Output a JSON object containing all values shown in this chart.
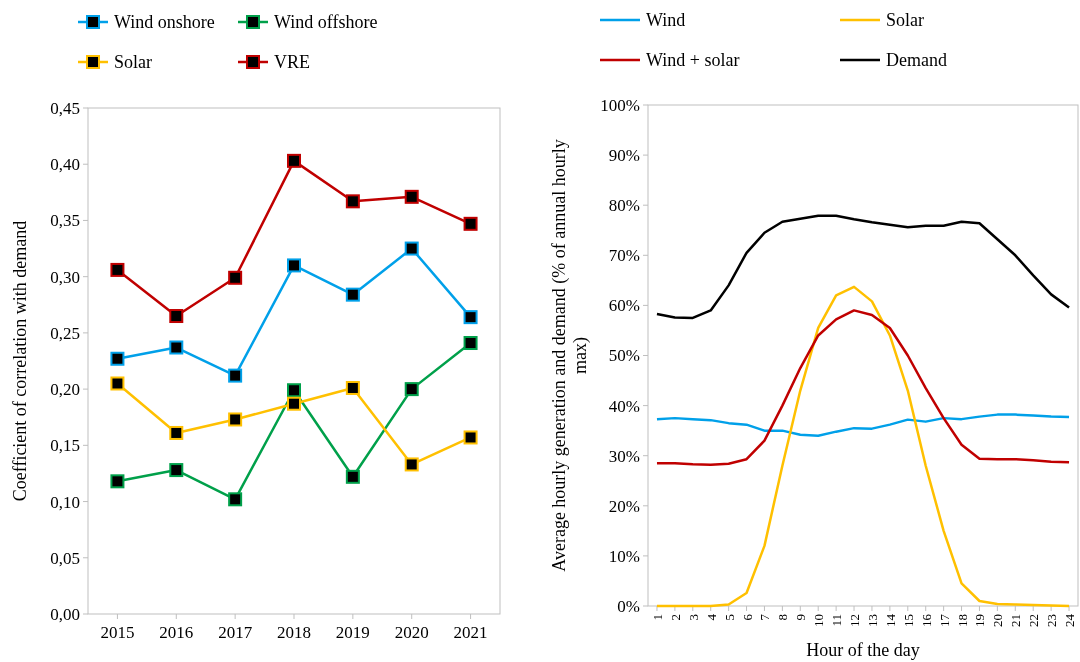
{
  "chart_data": [
    {
      "type": "line",
      "ylabel": "Coefficient of correlation with demand",
      "categories": [
        "2015",
        "2016",
        "2017",
        "2018",
        "2019",
        "2020",
        "2021"
      ],
      "ylim": [
        0,
        0.45
      ],
      "yticks": [
        {
          "value": 0,
          "label": "0,00"
        },
        {
          "value": 0.05,
          "label": "0,05"
        },
        {
          "value": 0.1,
          "label": "0,10"
        },
        {
          "value": 0.15,
          "label": "0,15"
        },
        {
          "value": 0.2,
          "label": "0,20"
        },
        {
          "value": 0.25,
          "label": "0,25"
        },
        {
          "value": 0.3,
          "label": "0,30"
        },
        {
          "value": 0.35,
          "label": "0,35"
        },
        {
          "value": 0.4,
          "label": "0,40"
        },
        {
          "value": 0.45,
          "label": "0,45"
        }
      ],
      "legend": "top",
      "marker": "square",
      "series": [
        {
          "name": "Wind onshore",
          "color": "#00a0e9",
          "values": [
            0.227,
            0.237,
            0.212,
            0.31,
            0.284,
            0.325,
            0.264
          ]
        },
        {
          "name": "Wind offshore",
          "color": "#00a04a",
          "values": [
            0.118,
            0.128,
            0.102,
            0.199,
            0.122,
            0.2,
            0.241
          ]
        },
        {
          "name": "Solar",
          "color": "#ffc000",
          "values": [
            0.205,
            0.161,
            0.173,
            0.187,
            0.201,
            0.133,
            0.157
          ]
        },
        {
          "name": "VRE",
          "color": "#c00000",
          "values": [
            0.306,
            0.265,
            0.299,
            0.403,
            0.367,
            0.371,
            0.347
          ]
        }
      ]
    },
    {
      "type": "line",
      "xlabel": "Hour of the day",
      "ylabel": "Average hourly generation and demand (% of annual hourly max)",
      "categories": [
        "1",
        "2",
        "3",
        "4",
        "5",
        "6",
        "7",
        "8",
        "9",
        "10",
        "11",
        "12",
        "13",
        "14",
        "15",
        "16",
        "17",
        "18",
        "19",
        "20",
        "21",
        "22",
        "23",
        "24"
      ],
      "ylim": [
        0,
        100
      ],
      "yticks": [
        {
          "value": 0,
          "label": "0%"
        },
        {
          "value": 10,
          "label": "10%"
        },
        {
          "value": 20,
          "label": "20%"
        },
        {
          "value": 30,
          "label": "30%"
        },
        {
          "value": 40,
          "label": "40%"
        },
        {
          "value": 50,
          "label": "50%"
        },
        {
          "value": 60,
          "label": "60%"
        },
        {
          "value": 70,
          "label": "70%"
        },
        {
          "value": 80,
          "label": "80%"
        },
        {
          "value": 90,
          "label": "90%"
        },
        {
          "value": 100,
          "label": "100%"
        }
      ],
      "legend": "top",
      "series": [
        {
          "name": "Wind",
          "color": "#00a0e9",
          "values": [
            37.3,
            37.5,
            37.3,
            37.1,
            36.5,
            36.2,
            35,
            35,
            34.2,
            34,
            34.8,
            35.5,
            35.4,
            36.2,
            37.2,
            36.8,
            37.5,
            37.3,
            37.8,
            38.2,
            38.2,
            38,
            37.8,
            37.7
          ]
        },
        {
          "name": "Solar",
          "color": "#ffc000",
          "values": [
            0,
            0,
            0,
            0,
            0.3,
            2.6,
            12,
            28,
            43,
            55.5,
            62,
            63.7,
            60.8,
            54,
            43,
            28,
            15,
            4.5,
            1,
            0.4,
            0.3,
            0.2,
            0.1,
            0
          ]
        },
        {
          "name": "Wind + solar",
          "color": "#c00000",
          "values": [
            28.5,
            28.5,
            28.3,
            28.2,
            28.4,
            29.3,
            33,
            40,
            47.5,
            54,
            57.2,
            59,
            58.1,
            55.5,
            50,
            43.5,
            37.5,
            32.2,
            29.4,
            29.3,
            29.3,
            29.1,
            28.8,
            28.7
          ]
        },
        {
          "name": "Demand",
          "color": "#000000",
          "values": [
            58.3,
            57.6,
            57.5,
            59,
            64,
            70.5,
            74.5,
            76.7,
            77.3,
            77.9,
            77.9,
            77.2,
            76.6,
            76.1,
            75.6,
            75.9,
            75.9,
            76.7,
            76.4,
            73.2,
            70,
            66,
            62.2,
            59.6
          ]
        }
      ]
    }
  ]
}
